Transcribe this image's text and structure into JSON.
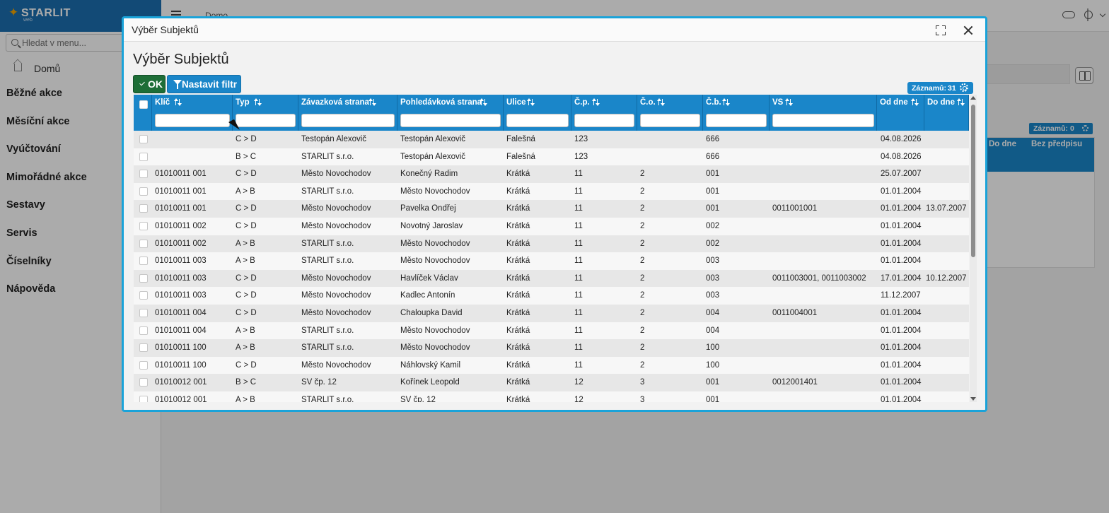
{
  "app": {
    "brand": "STARLIT",
    "brand_sub": "web",
    "breadcrumb": "Domo",
    "search": {
      "placeholder": "Hledat v menu..."
    },
    "home_label": "Domů",
    "menu": [
      "Běžné akce",
      "Měsíční akce",
      "Vyúčtování",
      "Mimořádné akce",
      "Sestavy",
      "Servis",
      "Číselníky",
      "Nápověda"
    ],
    "bg_records": {
      "label": "Záznamů:",
      "count": "0"
    },
    "bg_columns": [
      "Do dne",
      "Bez předpisu"
    ]
  },
  "dialog": {
    "window_title": "Výběr Subjektů",
    "page_title": "Výběr Subjektů",
    "ok_label": "OK",
    "filter_label": "Nastavit filtr",
    "records_label": "Záznamů:",
    "records_count": "31",
    "columns": [
      "Klíč",
      "Typ",
      "Závazková strana",
      "Pohledávková strana",
      "Ulice",
      "Č.p.",
      "Č.o.",
      "Č.b.",
      "VS",
      "Od dne",
      "Do dne"
    ],
    "rows": [
      [
        "",
        "C > D",
        "Testopán Alexovič",
        "Testopán Alexovič",
        "Falešná",
        "123",
        "",
        "666",
        "",
        "04.08.2026",
        ""
      ],
      [
        "",
        "B > C",
        "STARLIT s.r.o.",
        "Testopán Alexovič",
        "Falešná",
        "123",
        "",
        "666",
        "",
        "04.08.2026",
        ""
      ],
      [
        "01010011 001",
        "C > D",
        "Město Novochodov",
        "Konečný Radim",
        "Krátká",
        "11",
        "2",
        "001",
        "",
        "25.07.2007",
        ""
      ],
      [
        "01010011 001",
        "A > B",
        "STARLIT s.r.o.",
        "Město Novochodov",
        "Krátká",
        "11",
        "2",
        "001",
        "",
        "01.01.2004",
        ""
      ],
      [
        "01010011 001",
        "C > D",
        "Město Novochodov",
        "Pavelka Ondřej",
        "Krátká",
        "11",
        "2",
        "001",
        "0011001001",
        "01.01.2004",
        "13.07.2007"
      ],
      [
        "01010011 002",
        "C > D",
        "Město Novochodov",
        "Novotný Jaroslav",
        "Krátká",
        "11",
        "2",
        "002",
        "",
        "01.01.2004",
        ""
      ],
      [
        "01010011 002",
        "A > B",
        "STARLIT s.r.o.",
        "Město Novochodov",
        "Krátká",
        "11",
        "2",
        "002",
        "",
        "01.01.2004",
        ""
      ],
      [
        "01010011 003",
        "A > B",
        "STARLIT s.r.o.",
        "Město Novochodov",
        "Krátká",
        "11",
        "2",
        "003",
        "",
        "01.01.2004",
        ""
      ],
      [
        "01010011 003",
        "C > D",
        "Město Novochodov",
        "Havlíček Václav",
        "Krátká",
        "11",
        "2",
        "003",
        "0011003001, 0011003002",
        "17.01.2004",
        "10.12.2007"
      ],
      [
        "01010011 003",
        "C > D",
        "Město Novochodov",
        "Kadlec Antonín",
        "Krátká",
        "11",
        "2",
        "003",
        "",
        "11.12.2007",
        ""
      ],
      [
        "01010011 004",
        "C > D",
        "Město Novochodov",
        "Chaloupka David",
        "Krátká",
        "11",
        "2",
        "004",
        "0011004001",
        "01.01.2004",
        ""
      ],
      [
        "01010011 004",
        "A > B",
        "STARLIT s.r.o.",
        "Město Novochodov",
        "Krátká",
        "11",
        "2",
        "004",
        "",
        "01.01.2004",
        ""
      ],
      [
        "01010011 100",
        "A > B",
        "STARLIT s.r.o.",
        "Město Novochodov",
        "Krátká",
        "11",
        "2",
        "100",
        "",
        "01.01.2004",
        ""
      ],
      [
        "01010011 100",
        "C > D",
        "Město Novochodov",
        "Náhlovský Kamil",
        "Krátká",
        "11",
        "2",
        "100",
        "",
        "01.01.2004",
        ""
      ],
      [
        "01010012 001",
        "B > C",
        "SV čp. 12",
        "Kořínek Leopold",
        "Krátká",
        "12",
        "3",
        "001",
        "0012001401",
        "01.01.2004",
        ""
      ],
      [
        "01010012 001",
        "A > B",
        "STARLIT s.r.o.",
        "SV čp. 12",
        "Krátká",
        "12",
        "3",
        "001",
        "",
        "01.01.2004",
        ""
      ]
    ]
  },
  "colors": {
    "header_blue": "#1a86c9",
    "ok_green": "#1e6e37",
    "dialog_border": "#1aa3d9",
    "brand_blue": "#1b6fb1"
  }
}
